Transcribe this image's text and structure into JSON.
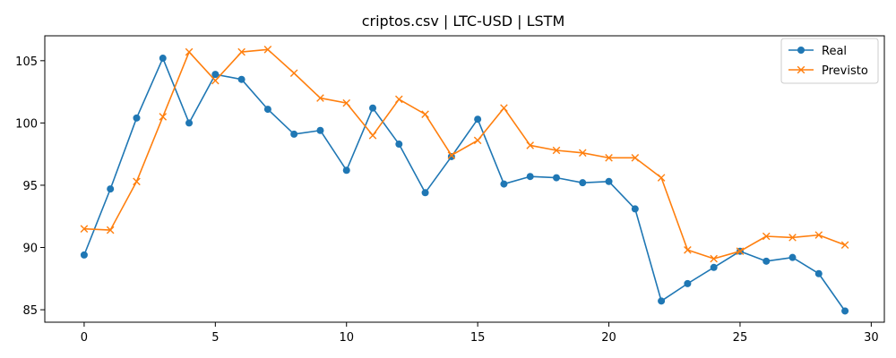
{
  "chart_data": {
    "type": "line",
    "title": "criptos.csv | LTC-USD | LSTM",
    "xlabel": "",
    "ylabel": "",
    "xlim": [
      -1.5,
      30.5
    ],
    "ylim": [
      84,
      107
    ],
    "x_ticks": [
      0,
      5,
      10,
      15,
      20,
      25,
      30
    ],
    "y_ticks": [
      85,
      90,
      95,
      100,
      105
    ],
    "grid": false,
    "legend_position": "top-right",
    "x": [
      0,
      1,
      2,
      3,
      4,
      5,
      6,
      7,
      8,
      9,
      10,
      11,
      12,
      13,
      14,
      15,
      16,
      17,
      18,
      19,
      20,
      21,
      22,
      23,
      24,
      25,
      26,
      27,
      28,
      29
    ],
    "series": [
      {
        "name": "Real",
        "color": "#1f77b4",
        "marker": "circle",
        "values": [
          89.4,
          94.7,
          100.4,
          105.2,
          100.0,
          103.9,
          103.5,
          101.1,
          99.1,
          99.4,
          96.2,
          101.2,
          98.3,
          94.4,
          97.3,
          100.3,
          95.1,
          95.7,
          95.6,
          95.2,
          95.3,
          93.1,
          85.7,
          87.1,
          88.4,
          89.7,
          88.9,
          89.2,
          87.9,
          84.9
        ]
      },
      {
        "name": "Previsto",
        "color": "#ff7f0e",
        "marker": "x",
        "values": [
          91.5,
          91.4,
          95.3,
          100.5,
          105.7,
          103.4,
          105.7,
          105.9,
          104.0,
          102.0,
          101.6,
          99.0,
          101.9,
          100.7,
          97.4,
          98.6,
          101.2,
          98.2,
          97.8,
          97.6,
          97.2,
          97.2,
          95.6,
          89.8,
          89.1,
          89.7,
          90.9,
          90.8,
          91.0,
          90.2
        ]
      }
    ]
  }
}
